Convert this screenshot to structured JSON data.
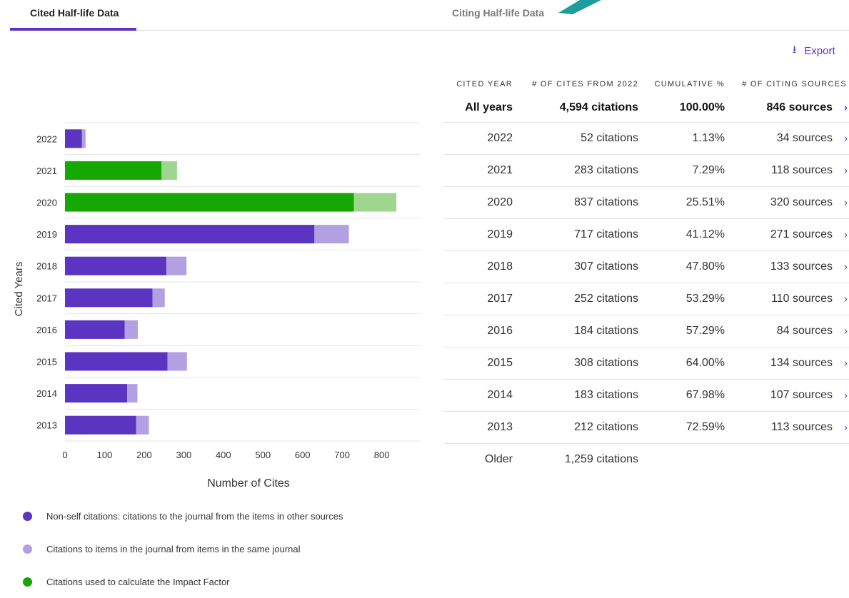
{
  "tabs": {
    "cited_label": "Cited Half-life Data",
    "citing_label": "Citing Half-life Data"
  },
  "export_label": "Export",
  "table": {
    "headers": [
      "CITED YEAR",
      "# OF CITES FROM 2022",
      "CUMULATIVE %",
      "# OF CITING SOURCES"
    ],
    "total": {
      "year": "All years",
      "cites": "4,594 citations",
      "cumulative": "100.00%",
      "sources": "846 sources"
    },
    "rows": [
      {
        "year": "2022",
        "cites": "52 citations",
        "cumulative": "1.13%",
        "sources": "34 sources"
      },
      {
        "year": "2021",
        "cites": "283 citations",
        "cumulative": "7.29%",
        "sources": "118 sources"
      },
      {
        "year": "2020",
        "cites": "837 citations",
        "cumulative": "25.51%",
        "sources": "320 sources"
      },
      {
        "year": "2019",
        "cites": "717 citations",
        "cumulative": "41.12%",
        "sources": "271 sources"
      },
      {
        "year": "2018",
        "cites": "307 citations",
        "cumulative": "47.80%",
        "sources": "133 sources"
      },
      {
        "year": "2017",
        "cites": "252 citations",
        "cumulative": "53.29%",
        "sources": "110 sources"
      },
      {
        "year": "2016",
        "cites": "184 citations",
        "cumulative": "57.29%",
        "sources": "84 sources"
      },
      {
        "year": "2015",
        "cites": "308 citations",
        "cumulative": "64.00%",
        "sources": "134 sources"
      },
      {
        "year": "2014",
        "cites": "183 citations",
        "cumulative": "67.98%",
        "sources": "107 sources"
      },
      {
        "year": "2013",
        "cites": "212 citations",
        "cumulative": "72.59%",
        "sources": "113 sources"
      }
    ],
    "older": {
      "year": "Older",
      "cites": "1,259 citations"
    }
  },
  "chart_data": {
    "type": "bar",
    "orientation": "horizontal",
    "stacked": true,
    "ylabel": "Cited Years",
    "xlabel": "Number of Cites",
    "xlim": [
      0,
      900
    ],
    "xticks": [
      0,
      100,
      200,
      300,
      400,
      500,
      600,
      700,
      800
    ],
    "categories": [
      "2022",
      "2021",
      "2020",
      "2019",
      "2018",
      "2017",
      "2016",
      "2015",
      "2014",
      "2013"
    ],
    "series": [
      {
        "values": [
          43,
          244,
          730,
          630,
          256,
          221,
          151,
          259,
          157,
          180
        ]
      },
      {
        "values": [
          9,
          39,
          107,
          87,
          51,
          31,
          33,
          49,
          26,
          32
        ]
      }
    ],
    "impact_factor_years": [
      "2021",
      "2020"
    ]
  },
  "colors": {
    "nonself": "#5c34c2",
    "self": "#b3a0e3",
    "impact": "#14a800",
    "impact_self": "#9ed58f",
    "accent": "#5c34c2"
  },
  "legend": [
    {
      "label": "Non-self citations: citations to the journal from the items in other sources",
      "color": "#5c34c2"
    },
    {
      "label": "Citations to items in the journal from items in the same journal",
      "color": "#b3a0e3"
    },
    {
      "label": "Citations used to calculate the Impact Factor",
      "color": "#14a800"
    }
  ]
}
